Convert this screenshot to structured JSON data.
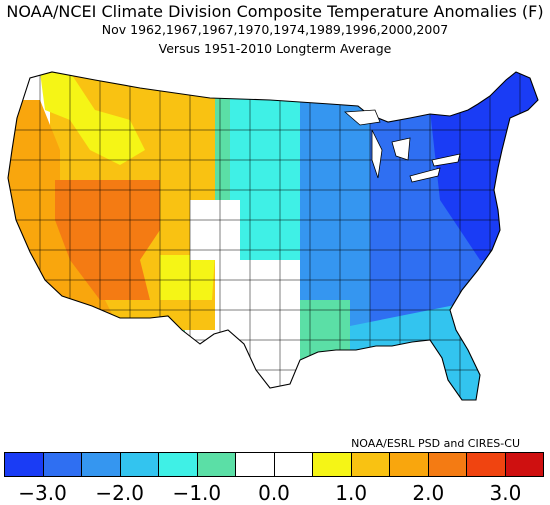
{
  "title": {
    "main": "NOAA/NCEI Climate Division Composite Temperature Anomalies (F)",
    "line2": "Nov   1962,1967,1967,1970,1974,1989,1996,2000,2007",
    "line3": "Versus 1951-2010 Longterm Average"
  },
  "credit": "NOAA/ESRL PSD and CIRES-CU",
  "colorbar": {
    "colors": [
      "#1a3cf5",
      "#2f6ff2",
      "#3596f0",
      "#33c4ef",
      "#3ff0e6",
      "#5bdfa6",
      "#ffffff",
      "#ffffff",
      "#f5f516",
      "#f9c212",
      "#f9a60d",
      "#f47b13",
      "#f04410",
      "#cf1010"
    ],
    "tick_labels": [
      "-3.0",
      "-2.0",
      "-1.0",
      "0.0",
      "1.0",
      "2.0",
      "3.0"
    ]
  },
  "map_colors": {
    "west_coast": "#f9a60d",
    "nevada_core": "#f47b13",
    "interior_west": "#f9c212",
    "northwest_yellow": "#f5f516",
    "plains_green": "#5bdfa6",
    "plains_cyan": "#3ff0e6",
    "midwest_blue": "#3596f0",
    "east_blue": "#2f6ff2",
    "northeast_deep": "#1a3cf5",
    "florida": "#33c4ef",
    "neutral": "#ffffff"
  }
}
